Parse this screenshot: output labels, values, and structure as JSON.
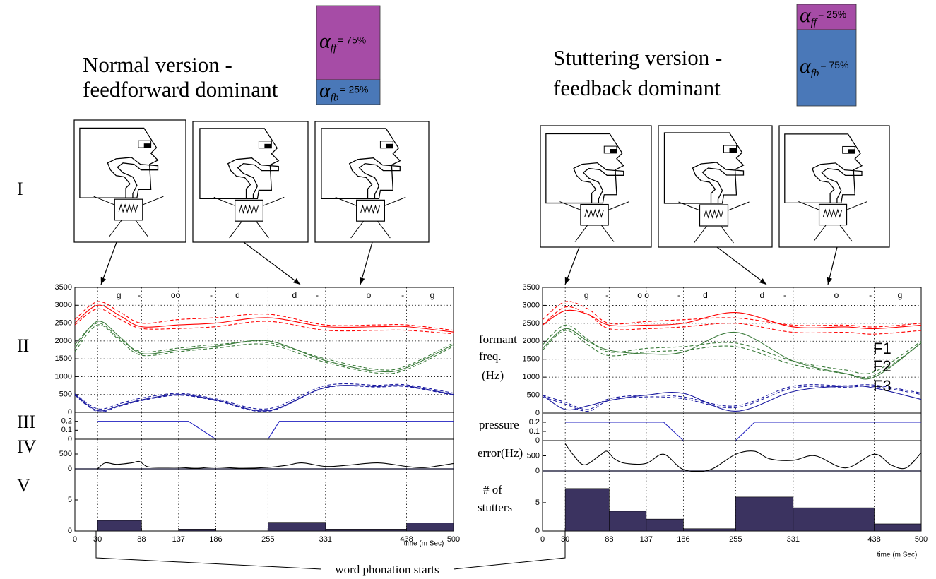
{
  "panels": [
    {
      "title": [
        "Normal version -",
        "feedforward dominant"
      ],
      "alpha": [
        {
          "symbol": "α",
          "sub": "ff",
          "label": "= 75%",
          "share": 75,
          "color": "#a64ca6"
        },
        {
          "symbol": "α",
          "sub": "fb",
          "label": "= 25%",
          "share": 25,
          "color": "#4a78b8"
        }
      ]
    },
    {
      "title": [
        "Stuttering version -",
        "feedback dominant"
      ],
      "alpha": [
        {
          "symbol": "α",
          "sub": "ff",
          "label": "= 25%",
          "share": 25,
          "color": "#a64ca6"
        },
        {
          "symbol": "α",
          "sub": "fb",
          "label": "= 75%",
          "share": 75,
          "color": "#4a78b8"
        }
      ]
    }
  ],
  "row_labels": [
    "I",
    "II",
    "III",
    "IV",
    "V"
  ],
  "side_labels": {
    "formant": [
      "formant",
      "freq.",
      "(Hz)"
    ],
    "pressure": "pressure",
    "error": "error(Hz)",
    "stutters": [
      "# of",
      "stutters"
    ]
  },
  "footer": "word phonation starts",
  "chart_data": [
    {
      "type": "line",
      "smooth": true,
      "segments": [
        "g",
        "-",
        "oo",
        "-",
        "d",
        "d",
        "-",
        "o",
        "-",
        "g"
      ],
      "x": [
        0,
        30,
        60,
        88,
        137,
        186,
        255,
        331,
        400,
        438,
        500
      ],
      "xlim": [
        0,
        500
      ],
      "xticks": [
        0,
        30,
        88,
        137,
        186,
        255,
        331,
        438,
        500
      ],
      "ylim": [
        0,
        3500
      ],
      "yticks": [
        0,
        500,
        1000,
        1500,
        2000,
        2500,
        3000,
        3500
      ],
      "grid": "both",
      "series": [
        {
          "color": "#ff0000",
          "dash": false,
          "values": [
            2500,
            3000,
            2700,
            2400,
            2450,
            2500,
            2650,
            2400,
            2400,
            2400,
            2250
          ]
        },
        {
          "color": "#ff0000",
          "dash": true,
          "values": [
            2600,
            3100,
            2800,
            2500,
            2600,
            2650,
            2750,
            2450,
            2450,
            2450,
            2300
          ]
        },
        {
          "color": "#ff0000",
          "dash": true,
          "values": [
            2450,
            2900,
            2600,
            2350,
            2350,
            2400,
            2550,
            2300,
            2300,
            2300,
            2200
          ]
        },
        {
          "color": "#3a7a3a",
          "dash": false,
          "values": [
            1800,
            2550,
            2100,
            1650,
            1750,
            1850,
            2000,
            1450,
            1150,
            1250,
            1900
          ]
        },
        {
          "color": "#3a7a3a",
          "dash": true,
          "values": [
            1900,
            2500,
            2050,
            1700,
            1800,
            1900,
            1950,
            1500,
            1200,
            1300,
            1950
          ]
        },
        {
          "color": "#3a7a3a",
          "dash": true,
          "values": [
            1700,
            2450,
            2000,
            1600,
            1700,
            1800,
            1900,
            1400,
            1100,
            1200,
            1850
          ]
        },
        {
          "color": "#1a1aa0",
          "dash": false,
          "values": [
            500,
            50,
            200,
            350,
            500,
            350,
            50,
            700,
            730,
            740,
            500
          ]
        },
        {
          "color": "#1a1aa0",
          "dash": true,
          "values": [
            520,
            100,
            250,
            400,
            530,
            380,
            100,
            750,
            760,
            770,
            540
          ]
        },
        {
          "color": "#1a1aa0",
          "dash": true,
          "values": [
            480,
            20,
            180,
            330,
            480,
            330,
            30,
            690,
            710,
            720,
            480
          ]
        }
      ]
    },
    {
      "type": "line",
      "smooth": false,
      "x": [
        30,
        150,
        186,
        255,
        270,
        500
      ],
      "xlim": [
        0,
        500
      ],
      "xticks": [
        0,
        30,
        88,
        137,
        186,
        255,
        331,
        438,
        500
      ],
      "ylim": [
        0,
        0.3
      ],
      "yticks": [
        0,
        0.1,
        0.2
      ],
      "grid": "x",
      "series": [
        {
          "color": "#2020c0",
          "dash": false,
          "values": [
            0.2,
            0.2,
            0,
            0,
            0.2,
            0.2
          ]
        }
      ]
    },
    {
      "type": "line",
      "smooth": true,
      "zero_line": "#2020c0",
      "x": [
        30,
        40,
        55,
        75,
        85,
        95,
        110,
        137,
        160,
        186,
        220,
        255,
        280,
        300,
        331,
        360,
        400,
        438,
        460,
        480,
        500
      ],
      "xlim": [
        0,
        500
      ],
      "xticks": [
        0,
        30,
        88,
        137,
        186,
        255,
        331,
        438,
        500
      ],
      "ylim": [
        0,
        1000
      ],
      "yticks": [
        0,
        500
      ],
      "grid": "x",
      "series": [
        {
          "color": "#000000",
          "dash": false,
          "values": [
            0,
            200,
            150,
            200,
            250,
            80,
            50,
            50,
            20,
            60,
            20,
            50,
            120,
            200,
            80,
            120,
            200,
            80,
            40,
            100,
            180
          ]
        }
      ]
    },
    {
      "type": "histogram",
      "xlabel": "time (m Sec)",
      "bins": [
        30,
        88,
        137,
        186,
        255,
        331,
        438,
        500
      ],
      "values": [
        1.7,
        0,
        0.3,
        0,
        1.4,
        0.3,
        1.3
      ],
      "color": "#3b3360",
      "xlim": [
        0,
        500
      ],
      "xticks": [
        0,
        30,
        88,
        137,
        186,
        255,
        331,
        438,
        500
      ],
      "xticklabels": true,
      "ylim": [
        0,
        10
      ],
      "yticks": [
        0,
        5
      ],
      "grid": "x"
    },
    {
      "type": "line",
      "smooth": true,
      "segments": [
        "g",
        "-",
        "o o",
        "-",
        "d",
        "d",
        "-",
        "o",
        "-",
        "g"
      ],
      "curve_labels": [
        "F1",
        "F2",
        "F3"
      ],
      "x": [
        0,
        30,
        60,
        88,
        137,
        186,
        255,
        331,
        400,
        438,
        500
      ],
      "xlim": [
        0,
        500
      ],
      "xticks": [
        0,
        30,
        88,
        137,
        186,
        255,
        331,
        438,
        500
      ],
      "ylim": [
        0,
        3500
      ],
      "yticks": [
        0,
        500,
        1000,
        1500,
        2000,
        2500,
        3000,
        3500
      ],
      "grid": "both",
      "series": [
        {
          "color": "#ff0000",
          "dash": false,
          "values": [
            2450,
            2850,
            2750,
            2450,
            2450,
            2500,
            2800,
            2400,
            2400,
            2350,
            2450
          ]
        },
        {
          "color": "#ff0000",
          "dash": true,
          "values": [
            2600,
            3100,
            2900,
            2500,
            2550,
            2600,
            2650,
            2450,
            2450,
            2400,
            2500
          ]
        },
        {
          "color": "#ff0000",
          "dash": true,
          "values": [
            2450,
            2950,
            2750,
            2350,
            2350,
            2400,
            2500,
            2250,
            2250,
            2200,
            2300
          ]
        },
        {
          "color": "#3a7a3a",
          "dash": false,
          "values": [
            1800,
            2350,
            2000,
            1750,
            1650,
            1700,
            2250,
            1450,
            1100,
            1000,
            1950
          ]
        },
        {
          "color": "#3a7a3a",
          "dash": true,
          "values": [
            1900,
            2450,
            2050,
            1700,
            1800,
            1850,
            1950,
            1450,
            1200,
            1150,
            2000
          ]
        },
        {
          "color": "#3a7a3a",
          "dash": true,
          "values": [
            1750,
            2300,
            1900,
            1600,
            1700,
            1750,
            1850,
            1350,
            1100,
            1050,
            1950
          ]
        },
        {
          "color": "#1a1aa0",
          "dash": false,
          "values": [
            500,
            100,
            200,
            350,
            500,
            550,
            50,
            600,
            750,
            700,
            380
          ]
        },
        {
          "color": "#1a1aa0",
          "dash": true,
          "values": [
            500,
            300,
            100,
            400,
            500,
            450,
            200,
            750,
            760,
            780,
            560
          ]
        },
        {
          "color": "#1a1aa0",
          "dash": true,
          "values": [
            450,
            250,
            50,
            350,
            450,
            400,
            150,
            700,
            720,
            740,
            520
          ]
        }
      ]
    },
    {
      "type": "line",
      "smooth": false,
      "x": [
        30,
        160,
        186,
        255,
        280,
        500
      ],
      "xlim": [
        0,
        500
      ],
      "xticks": [
        0,
        30,
        88,
        137,
        186,
        255,
        331,
        438,
        500
      ],
      "ylim": [
        0,
        0.3
      ],
      "yticks": [
        0,
        0.1,
        0.2
      ],
      "grid": "x",
      "series": [
        {
          "color": "#2020c0",
          "dash": false,
          "values": [
            0.2,
            0.2,
            0,
            0,
            0.2,
            0.2
          ]
        }
      ]
    },
    {
      "type": "line",
      "smooth": true,
      "zero_line": "#2020c0",
      "x": [
        30,
        40,
        55,
        75,
        85,
        95,
        110,
        137,
        160,
        186,
        220,
        255,
        280,
        300,
        331,
        360,
        400,
        438,
        460,
        480,
        500
      ],
      "xlim": [
        0,
        500
      ],
      "xticks": [
        0,
        30,
        88,
        137,
        186,
        255,
        331,
        438,
        500
      ],
      "ylim": [
        0,
        1000
      ],
      "yticks": [
        0,
        500
      ],
      "grid": "x",
      "series": [
        {
          "color": "#000000",
          "dash": false,
          "values": [
            900,
            550,
            200,
            500,
            650,
            400,
            250,
            250,
            550,
            50,
            30,
            550,
            650,
            400,
            350,
            500,
            100,
            550,
            200,
            100,
            600
          ]
        }
      ]
    },
    {
      "type": "histogram",
      "xlabel": "time (m Sec)",
      "bins": [
        30,
        88,
        137,
        186,
        255,
        331,
        438,
        500
      ],
      "values": [
        7.5,
        3.5,
        2.1,
        0.4,
        6,
        4.1,
        1.25
      ],
      "color": "#3b3360",
      "xlim": [
        0,
        500
      ],
      "xticks": [
        0,
        30,
        88,
        137,
        186,
        255,
        331,
        438,
        500
      ],
      "xticklabels": true,
      "ylim": [
        0,
        10.6
      ],
      "yticks": [
        0,
        5
      ],
      "grid": "x"
    }
  ]
}
